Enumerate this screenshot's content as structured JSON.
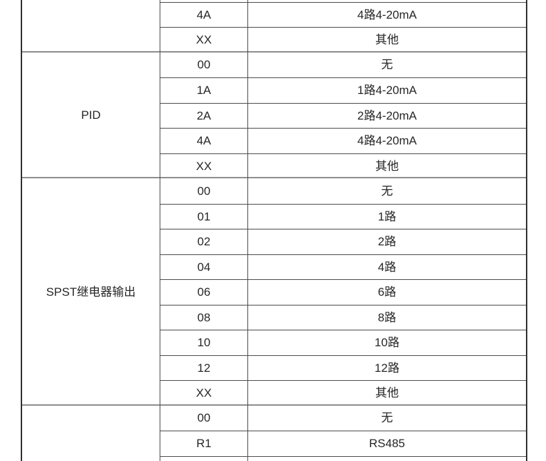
{
  "colors": {
    "background": "#ffffff",
    "text": "#262626",
    "borderThin": "#4a4a4a",
    "borderSection": "#8c8c8c",
    "borderOuter": "#2e2e2e"
  },
  "table": {
    "sections": [
      {
        "label": "",
        "rows": [
          {
            "code": "",
            "value": ""
          },
          {
            "code": "4A",
            "value": "4路4-20mA"
          },
          {
            "code": "XX",
            "value": "其他"
          }
        ]
      },
      {
        "label": "PID",
        "rows": [
          {
            "code": "00",
            "value": "无"
          },
          {
            "code": "1A",
            "value": "1路4-20mA"
          },
          {
            "code": "2A",
            "value": "2路4-20mA"
          },
          {
            "code": "4A",
            "value": "4路4-20mA"
          },
          {
            "code": "XX",
            "value": "其他"
          }
        ]
      },
      {
        "label": "SPST继电器输出",
        "rows": [
          {
            "code": "00",
            "value": "无"
          },
          {
            "code": "01",
            "value": "1路"
          },
          {
            "code": "02",
            "value": "2路"
          },
          {
            "code": "04",
            "value": "4路"
          },
          {
            "code": "06",
            "value": "6路"
          },
          {
            "code": "08",
            "value": "8路"
          },
          {
            "code": "10",
            "value": "10路"
          },
          {
            "code": "12",
            "value": "12路"
          },
          {
            "code": "XX",
            "value": "其他"
          }
        ]
      },
      {
        "label": "",
        "rows": [
          {
            "code": "00",
            "value": "无"
          },
          {
            "code": "R1",
            "value": "RS485"
          },
          {
            "code": "",
            "value": ""
          }
        ]
      }
    ]
  }
}
